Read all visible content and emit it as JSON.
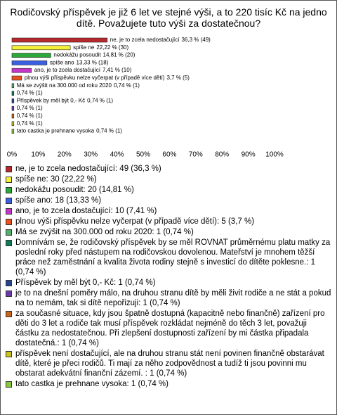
{
  "chart_data": {
    "type": "hbar",
    "title": "Rodičovský příspěvek je již 6 let ve stejné výši, a to 220 tisíc Kč na jedno dítě. Považujete tuto výši za dostatečnou?",
    "categories": [
      "ne, je to zcela nedostačující",
      "spíše ne",
      "nedokážu posoudit",
      "spíše ano",
      "ano, je to zcela dostačující",
      "plnou výši příspěvku nelze vyčerpat (v případě více dětí)",
      "Má se zvýšit na 300.000 od roku 2020",
      null,
      "Příspěvek by měl být 0,- Kč",
      null,
      null,
      null,
      "tato castka je prehnane vysoka"
    ],
    "values": [
      36.3,
      22.22,
      14.81,
      13.33,
      7.41,
      3.7,
      0.74,
      0.74,
      0.74,
      0.74,
      0.74,
      0.74,
      0.74
    ],
    "value_labels": [
      "36,3 % (49)",
      "22,22 % (30)",
      "14,81 % (20)",
      "13,33 % (18)",
      "7,41 % (10)",
      "3,7 % (5)",
      "0,74 % (1)",
      "0,74 % (1)",
      "0,74 % (1)",
      "0,74 % (1)",
      "0,74 % (1)",
      "0,74 % (1)",
      "0,74 % (1)"
    ],
    "colors": [
      "#b8282b",
      "#f5f03a",
      "#2aa83a",
      "#3a5fe0",
      "#c436c8",
      "#e8521e",
      "#4fb06a",
      "#127a5a",
      "#25458f",
      "#6a3aa8",
      "#c8661a",
      "#c9c21a",
      "#86c83a"
    ],
    "xlim": [
      0,
      100
    ],
    "xticks": [
      {
        "value": 0,
        "label": "0%"
      },
      {
        "value": 10,
        "label": "10%"
      },
      {
        "value": 20,
        "label": "20%"
      },
      {
        "value": 30,
        "label": "30%"
      },
      {
        "value": 40,
        "label": "40%"
      },
      {
        "value": 50,
        "label": "50%"
      },
      {
        "value": 60,
        "label": "60%"
      },
      {
        "value": 70,
        "label": "70%"
      },
      {
        "value": 80,
        "label": "80%"
      },
      {
        "value": 90,
        "label": "90%"
      },
      {
        "value": 100,
        "label": "100%"
      }
    ],
    "grid": false
  },
  "answers": [
    "ne, je to zcela nedostačující: 49 (36,3 %)",
    "spíše ne: 30 (22,22 %)",
    "nedokážu posoudit: 20 (14,81 %)",
    "spíše ano: 18 (13,33 %)",
    "ano, je to zcela dostačující: 10 (7,41 %)",
    "plnou výši příspěvku nelze vyčerpat (v případě více dětí): 5 (3,7 %)",
    "Má se zvýšit na 300.000 od roku 2020: 1 (0,74 %)",
    "Domnívám se, že rodičovský příspěvek by se měl ROVNAT průměrnému platu matky za poslední roky před nástupem na rodičovskou dovolenou. Mateřství je mnohem těžší práce než zaměstnání a kvalita života rodiny stejně s investicí do dítěte poklesne.: 1 (0,74 %)",
    "Příspěvek by měl být 0,- Kč: 1 (0,74 %)",
    "je to na dnešní poměry málo, na druhou stranu dítě by měli živit rodiče a ne stát a pokud na to nemám, tak si dítě nepořizuji: 1 (0,74 %)",
    "za současné situace, kdy jsou špatně dostupná (kapacitně nebo finančně) zařízení pro děti do 3 let a rodiče tak musí příspěvek rozkládat nejméně do těch 3 let, považuji částku za nedostatečnou. Při zlepšení dostupnosti zařízení by mi částka připadala dostatečná.: 1 (0,74 %)",
    "příspěvek není dostačující, ale na druhou stranu stát není povinen finančně obstarávat dítě, které je přeci rodičů. Ti mají za něho zodpovědnost a tudíž ti jsou povinni mu obstarat adekvátní finanční zázemí. : 1 (0,74 %)",
    "tato castka je prehnane vysoka: 1 (0,74 %)"
  ]
}
